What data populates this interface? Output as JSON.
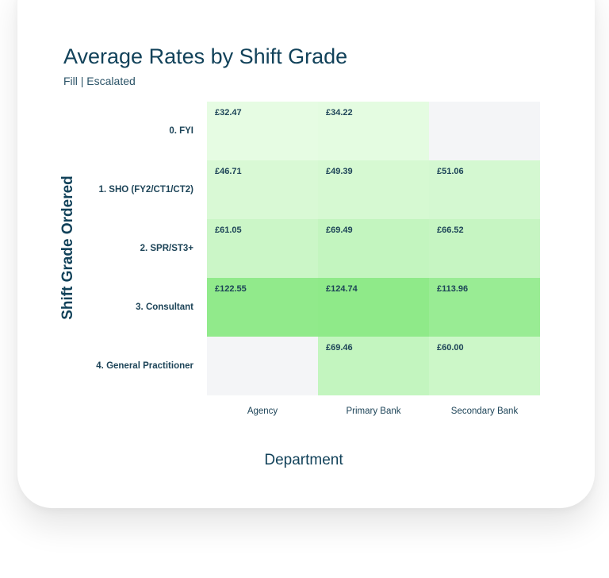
{
  "chart_data": {
    "type": "heatmap",
    "title": "Average Rates by Shift Grade",
    "subtitle": "Fill | Escalated",
    "xlabel": "Department",
    "ylabel": "Shift Grade Ordered",
    "columns": [
      "Agency",
      "Primary Bank",
      "Secondary Bank"
    ],
    "rows": [
      "0. FYI",
      "1. SHO (FY2/CT1/CT2)",
      "2. SPR/ST3+",
      "3. Consultant",
      "4. General Practitioner"
    ],
    "values": [
      [
        32.47,
        34.22,
        null
      ],
      [
        46.71,
        49.39,
        51.06
      ],
      [
        61.05,
        69.49,
        66.52
      ],
      [
        122.55,
        124.74,
        113.96
      ],
      [
        null,
        69.46,
        60.0
      ]
    ],
    "labels": [
      [
        "£32.47",
        "£34.22",
        ""
      ],
      [
        "£46.71",
        "£49.39",
        "£51.06"
      ],
      [
        "£61.05",
        "£69.49",
        "£66.52"
      ],
      [
        "£122.55",
        "£124.74",
        "£113.96"
      ],
      [
        "",
        "£69.46",
        "£60.00"
      ]
    ],
    "color_scale": {
      "low": "#e6fce3",
      "high": "#8fea89",
      "empty": "#f4f5f7"
    }
  }
}
